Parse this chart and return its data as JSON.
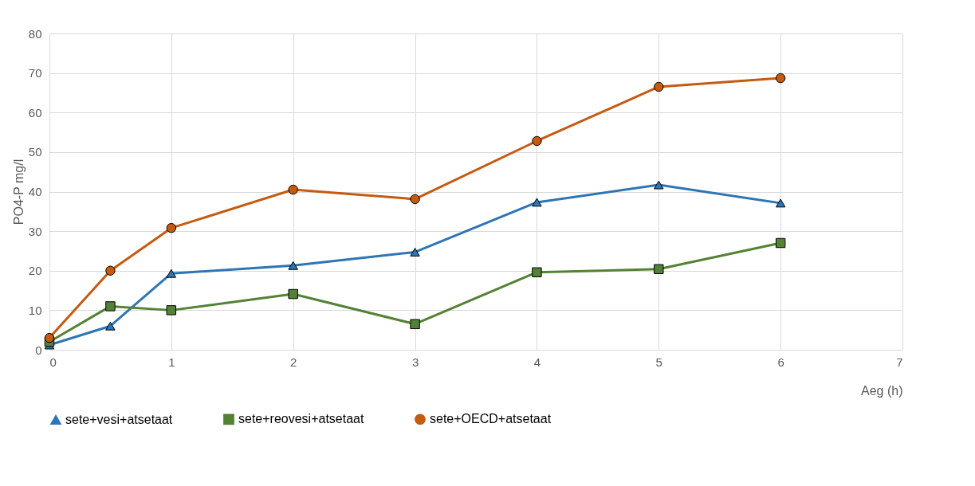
{
  "chart_data": {
    "type": "line",
    "xlabel": "Aeg (h)",
    "ylabel": "PO4-P mg/l",
    "x": [
      0,
      0.5,
      1,
      2,
      3,
      4,
      5,
      6
    ],
    "series": [
      {
        "name": "sete+vesi+atsetaat",
        "color": "#2e75b6",
        "marker": "triangle",
        "values": [
          1.2,
          6,
          19.3,
          21.3,
          24.7,
          37.3,
          41.7,
          37.1
        ]
      },
      {
        "name": "sete+reovesi+atsetaat",
        "color": "#548235",
        "marker": "square",
        "values": [
          2,
          11,
          10,
          14.1,
          6.5,
          19.6,
          20.4,
          27
        ]
      },
      {
        "name": "sete+OECD+atsetaat",
        "color": "#c55a11",
        "marker": "circle",
        "values": [
          3,
          20,
          30.8,
          40.5,
          38.1,
          52.8,
          66.5,
          68.7
        ]
      }
    ],
    "xlim": [
      0,
      7
    ],
    "xticks": [
      0,
      1,
      2,
      3,
      4,
      5,
      6,
      7
    ],
    "ylim": [
      0,
      80
    ],
    "yticks": [
      0,
      10,
      20,
      30,
      40,
      50,
      60,
      70,
      80
    ],
    "grid": true,
    "legend": "bottom",
    "line_style": "solid"
  }
}
